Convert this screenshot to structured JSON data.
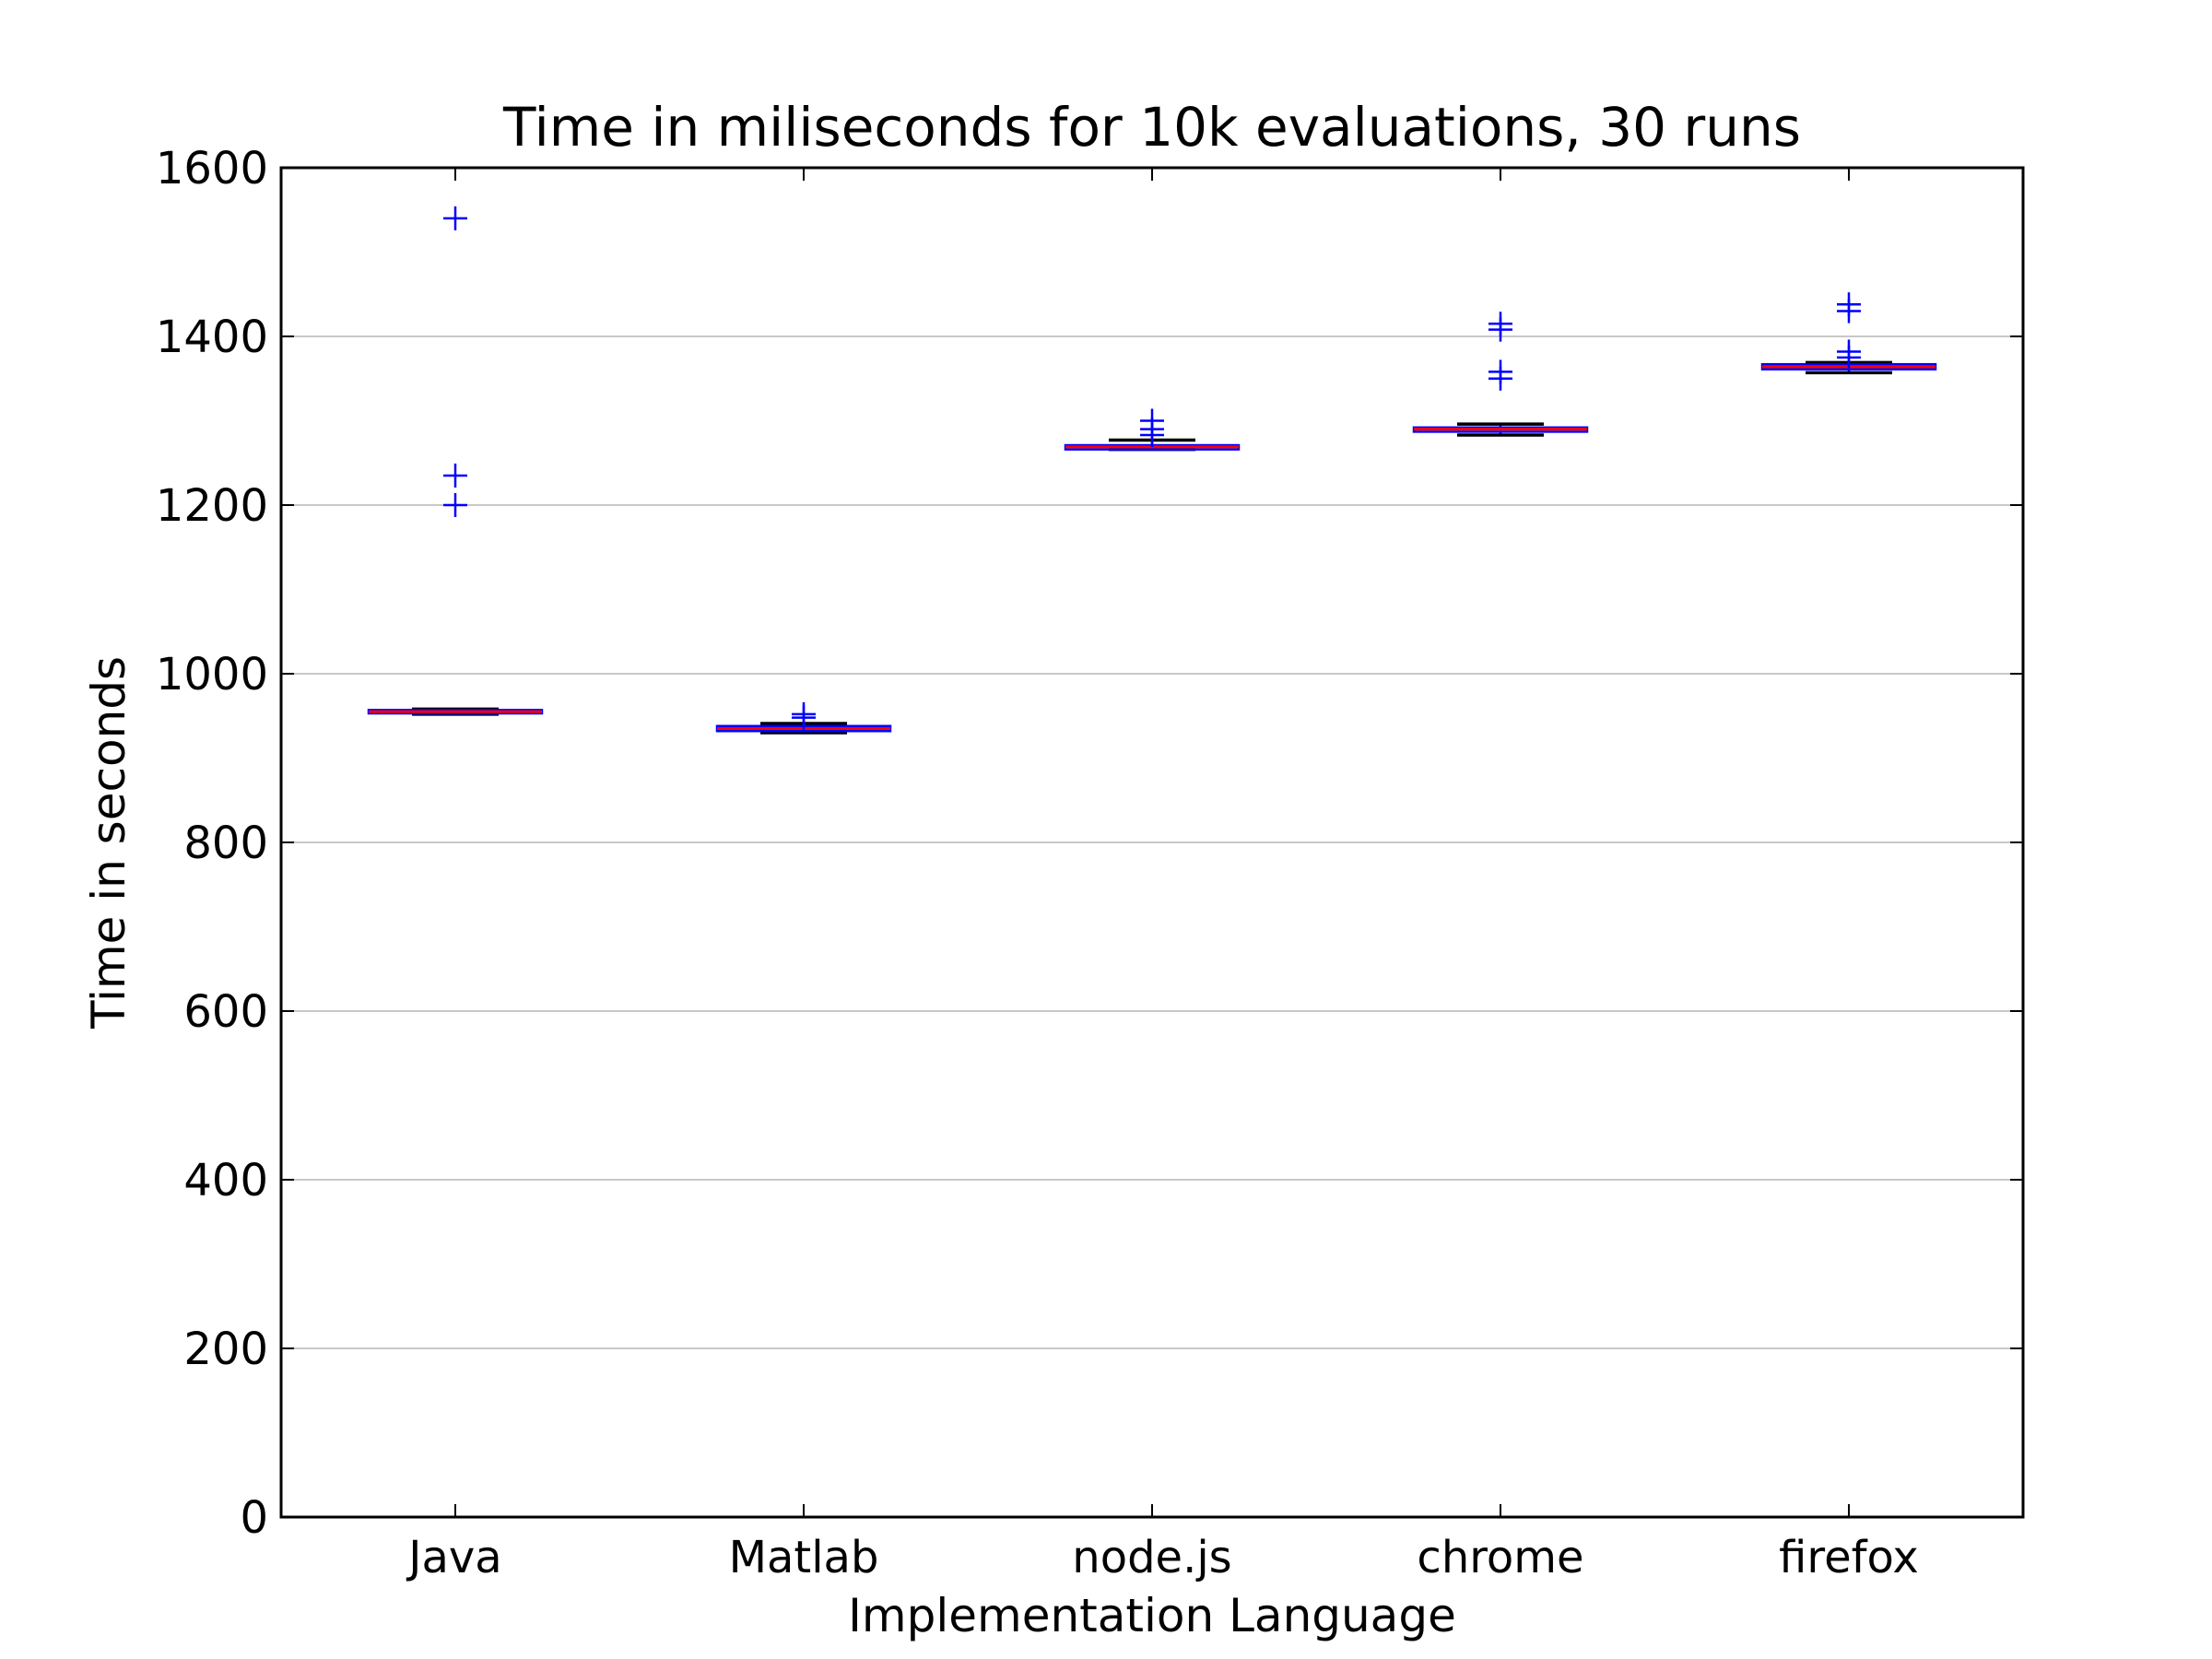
{
  "chart_data": {
    "type": "box",
    "title": "Time in miliseconds for 10k evaluations, 30 runs",
    "xlabel": "Implementation Language",
    "ylabel": "Time in seconds",
    "ylim": [
      0,
      1600
    ],
    "yticks": [
      0,
      200,
      400,
      600,
      800,
      1000,
      1200,
      1400,
      1600
    ],
    "grid": "horizontal",
    "categories": [
      "Java",
      "Matlab",
      "node.js",
      "chrome",
      "firefox"
    ],
    "series": [
      {
        "category": "Java",
        "whisker_low": 952,
        "q1": 953,
        "median": 955,
        "q3": 957,
        "whisker_high": 958,
        "fliers": [
          1200,
          1235,
          1540
        ]
      },
      {
        "category": "Matlab",
        "whisker_low": 930,
        "q1": 932,
        "median": 935,
        "q3": 938,
        "whisker_high": 941,
        "fliers": [
          948,
          952
        ]
      },
      {
        "category": "node.js",
        "whisker_low": 1266,
        "q1": 1266,
        "median": 1269,
        "q3": 1271,
        "whisker_high": 1277,
        "fliers": [
          1283,
          1290,
          1300
        ]
      },
      {
        "category": "chrome",
        "whisker_low": 1283,
        "q1": 1287,
        "median": 1290,
        "q3": 1292,
        "whisker_high": 1296,
        "fliers": [
          1350,
          1358,
          1408,
          1415
        ]
      },
      {
        "category": "firefox",
        "whisker_low": 1357,
        "q1": 1361,
        "median": 1364,
        "q3": 1367,
        "whisker_high": 1369,
        "fliers": [
          1375,
          1382,
          1430,
          1438
        ]
      }
    ]
  }
}
